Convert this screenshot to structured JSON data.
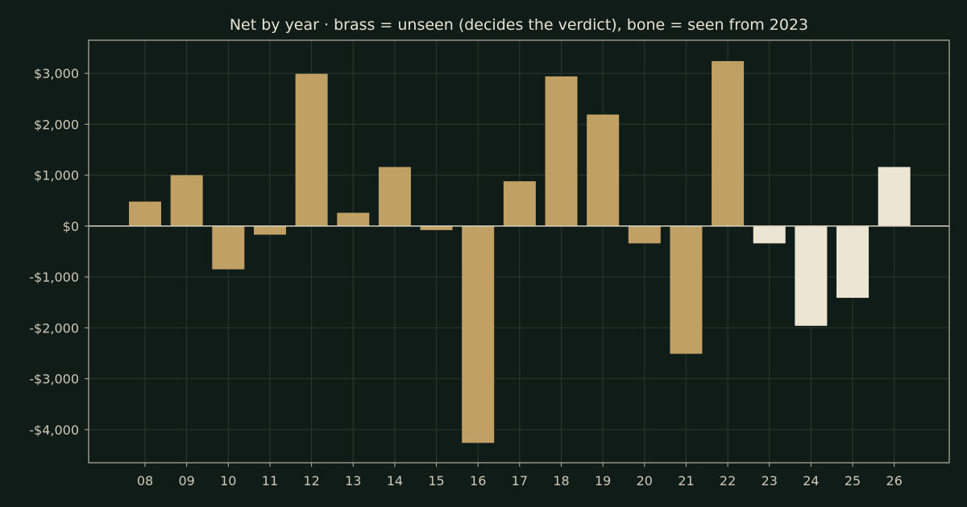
{
  "chart_data": {
    "type": "bar",
    "title": "Net by year  ·  brass = unseen (decides the verdict), bone = seen from 2023",
    "xlabel": "",
    "ylabel": "",
    "categories": [
      "08",
      "09",
      "10",
      "11",
      "12",
      "13",
      "14",
      "15",
      "16",
      "17",
      "18",
      "19",
      "20",
      "21",
      "22",
      "23",
      "24",
      "25",
      "26"
    ],
    "values": [
      480,
      1000,
      -850,
      -170,
      2990,
      260,
      1160,
      -80,
      -4260,
      880,
      2940,
      2190,
      -340,
      -2510,
      3240,
      -340,
      -1960,
      -1410,
      1160
    ],
    "groups": [
      "unseen",
      "unseen",
      "unseen",
      "unseen",
      "unseen",
      "unseen",
      "unseen",
      "unseen",
      "unseen",
      "unseen",
      "unseen",
      "unseen",
      "unseen",
      "unseen",
      "unseen",
      "seen",
      "seen",
      "seen",
      "seen"
    ],
    "group_colors": {
      "unseen": "#c0a064",
      "seen": "#ece5d4"
    },
    "ylim": [
      -4650,
      3650
    ],
    "yticks": [
      3000,
      2000,
      1000,
      0,
      -1000,
      -2000,
      -3000,
      -4000
    ],
    "ytick_labels": [
      "$3,000",
      "$2,000",
      "$1,000",
      "$0",
      "-$1,000",
      "-$2,000",
      "-$3,000",
      "-$4,000"
    ],
    "grid": true,
    "legend": "none"
  },
  "colors": {
    "background": "#101c17",
    "axes_frame": "#b9b4a4",
    "grid": "#2a3a31",
    "zero_line": "#d8d2c0"
  }
}
